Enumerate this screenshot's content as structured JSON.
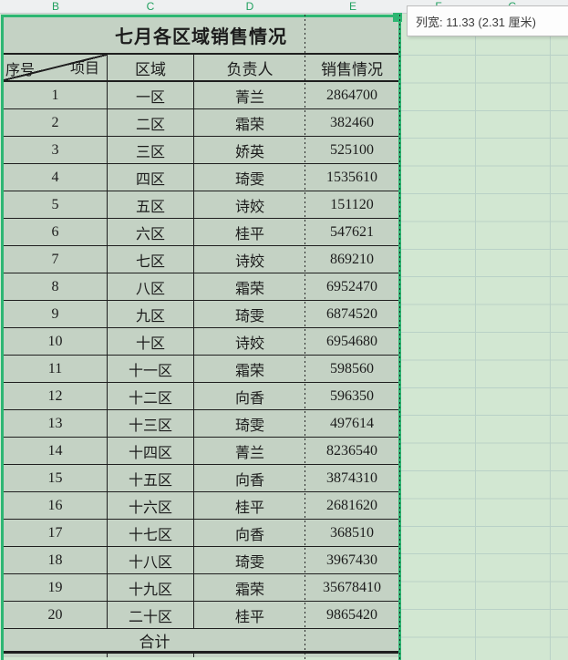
{
  "app": {
    "kind": "spreadsheet"
  },
  "column_headers": [
    "B",
    "C",
    "D",
    "E",
    "F",
    "G"
  ],
  "tooltip": {
    "text": "列宽: 11.33 (2.31 厘米)"
  },
  "table": {
    "title": "七月各区域销售情况",
    "corner": {
      "bottom_left": "序号",
      "top_right": "项目"
    },
    "headers": {
      "region": "区域",
      "manager": "负责人",
      "sales": "销售情况"
    },
    "total_label": "合计",
    "total_value": "",
    "rows": [
      {
        "no": "1",
        "region": "一区",
        "manager": "菁兰",
        "sales": "2864700"
      },
      {
        "no": "2",
        "region": "二区",
        "manager": "霜荣",
        "sales": "382460"
      },
      {
        "no": "3",
        "region": "三区",
        "manager": "娇英",
        "sales": "525100"
      },
      {
        "no": "4",
        "region": "四区",
        "manager": "琦雯",
        "sales": "1535610"
      },
      {
        "no": "5",
        "region": "五区",
        "manager": "诗姣",
        "sales": "151120"
      },
      {
        "no": "6",
        "region": "六区",
        "manager": "桂平",
        "sales": "547621"
      },
      {
        "no": "7",
        "region": "七区",
        "manager": "诗姣",
        "sales": "869210"
      },
      {
        "no": "8",
        "region": "八区",
        "manager": "霜荣",
        "sales": "6952470"
      },
      {
        "no": "9",
        "region": "九区",
        "manager": "琦雯",
        "sales": "6874520"
      },
      {
        "no": "10",
        "region": "十区",
        "manager": "诗姣",
        "sales": "6954680"
      },
      {
        "no": "11",
        "region": "十一区",
        "manager": "霜荣",
        "sales": "598560"
      },
      {
        "no": "12",
        "region": "十二区",
        "manager": "向香",
        "sales": "596350"
      },
      {
        "no": "13",
        "region": "十三区",
        "manager": "琦雯",
        "sales": "497614"
      },
      {
        "no": "14",
        "region": "十四区",
        "manager": "菁兰",
        "sales": "8236540"
      },
      {
        "no": "15",
        "region": "十五区",
        "manager": "向香",
        "sales": "3874310"
      },
      {
        "no": "16",
        "region": "十六区",
        "manager": "桂平",
        "sales": "2681620"
      },
      {
        "no": "17",
        "region": "十七区",
        "manager": "向香",
        "sales": "368510"
      },
      {
        "no": "18",
        "region": "十八区",
        "manager": "琦雯",
        "sales": "3967430"
      },
      {
        "no": "19",
        "region": "十九区",
        "manager": "霜荣",
        "sales": "35678410"
      },
      {
        "no": "20",
        "region": "二十区",
        "manager": "桂平",
        "sales": "9865420"
      }
    ]
  },
  "colors": {
    "selection_green": "#2db673",
    "header_letter_green": "#21a05f",
    "table_cell_bg": "#c4d2c4",
    "sheet_bg": "#d2e7d2",
    "gridline": "#b9d1c7"
  }
}
